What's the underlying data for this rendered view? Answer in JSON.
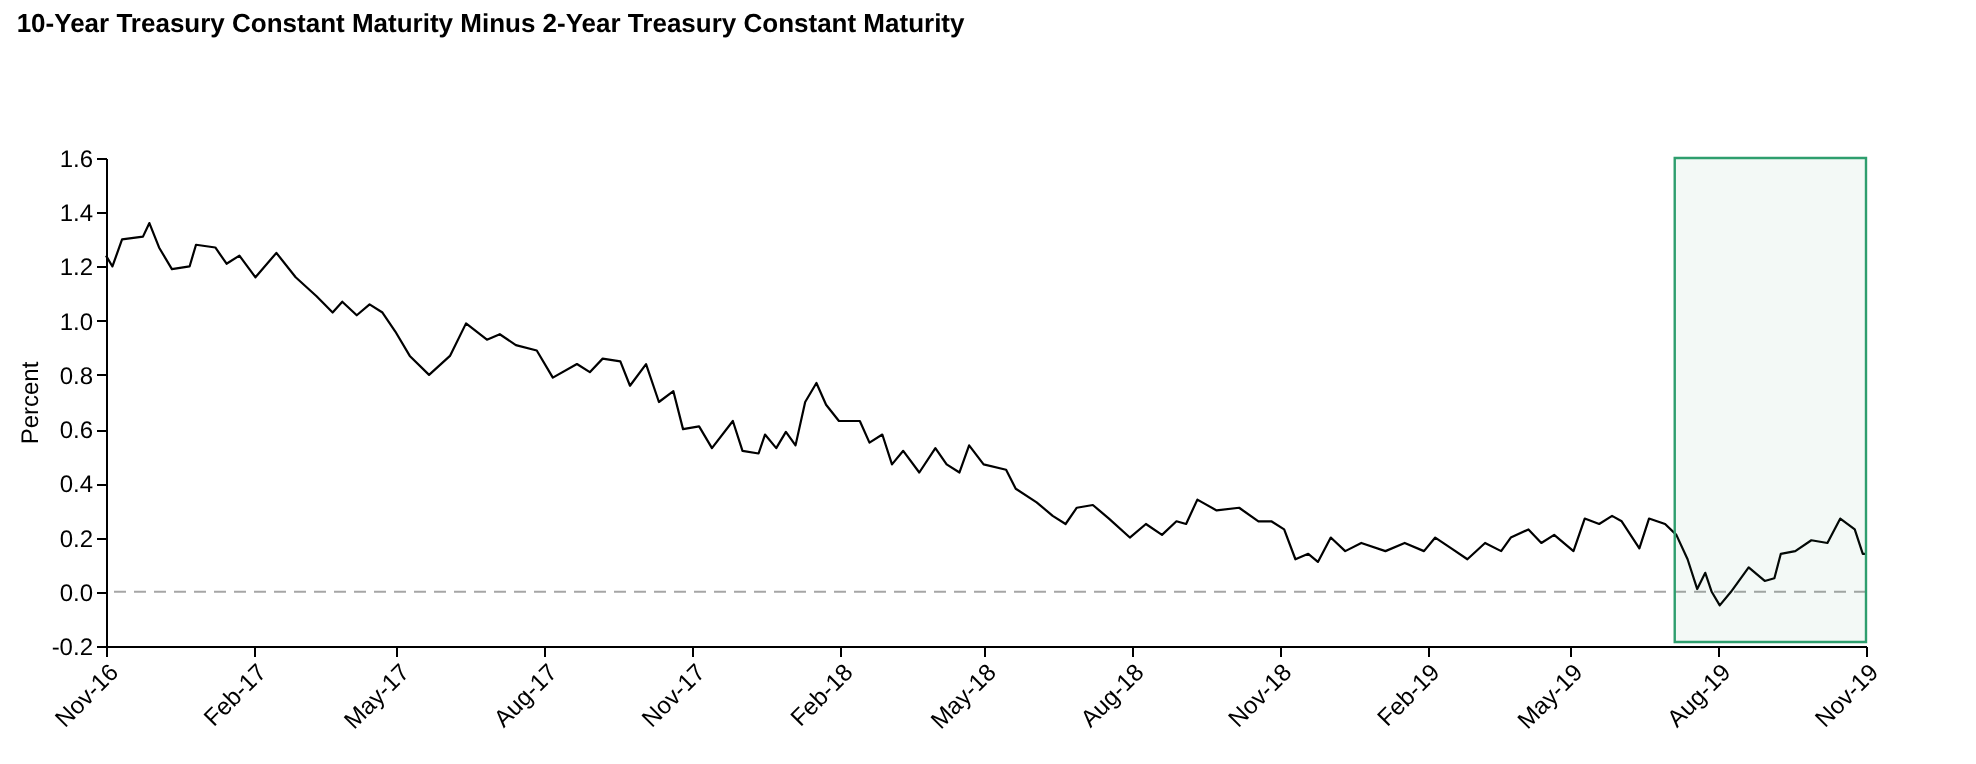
{
  "chart_data": {
    "type": "line",
    "title": "10-Year Treasury Constant Maturity Minus 2-Year Treasury Constant Maturity",
    "ylabel": "Percent",
    "xlim": [
      "2016-11-01",
      "2019-11-01"
    ],
    "xticks": [
      {
        "value": "2016-11-01",
        "label": "Nov-16"
      },
      {
        "value": "2017-02-01",
        "label": "Feb-17"
      },
      {
        "value": "2017-05-01",
        "label": "May-17"
      },
      {
        "value": "2017-08-01",
        "label": "Aug-17"
      },
      {
        "value": "2017-11-01",
        "label": "Nov-17"
      },
      {
        "value": "2018-02-01",
        "label": "Feb-18"
      },
      {
        "value": "2018-05-01",
        "label": "May-18"
      },
      {
        "value": "2018-08-01",
        "label": "Aug-18"
      },
      {
        "value": "2018-11-01",
        "label": "Nov-18"
      },
      {
        "value": "2019-02-01",
        "label": "Feb-19"
      },
      {
        "value": "2019-05-01",
        "label": "May-19"
      },
      {
        "value": "2019-08-01",
        "label": "Aug-19"
      },
      {
        "value": "2019-11-01",
        "label": "Nov-19"
      }
    ],
    "ylim": [
      -0.2,
      1.6
    ],
    "yticks": [
      {
        "value": -0.2,
        "label": "-0.2"
      },
      {
        "value": 0,
        "label": "0.0"
      },
      0.2,
      0.4,
      0.6,
      0.8,
      {
        "value": 1,
        "label": "1.0"
      },
      1.2,
      1.4,
      1.6
    ],
    "grid": false,
    "line_style": "solid",
    "marker": "none",
    "x": [
      "2016-11-01",
      "2016-11-05",
      "2016-11-11",
      "2016-11-24",
      "2016-11-28",
      "2016-12-04",
      "2016-12-12",
      "2016-12-23",
      "2016-12-27",
      "2017-01-08",
      "2017-01-15",
      "2017-01-23",
      "2017-02-02",
      "2017-02-15",
      "2017-02-27",
      "2017-03-12",
      "2017-03-22",
      "2017-03-28",
      "2017-04-06",
      "2017-04-14",
      "2017-04-22",
      "2017-04-30",
      "2017-05-09",
      "2017-05-21",
      "2017-06-03",
      "2017-06-13",
      "2017-06-26",
      "2017-07-04",
      "2017-07-14",
      "2017-07-27",
      "2017-08-06",
      "2017-08-21",
      "2017-08-29",
      "2017-09-06",
      "2017-09-17",
      "2017-09-23",
      "2017-10-03",
      "2017-10-11",
      "2017-10-20",
      "2017-10-26",
      "2017-11-05",
      "2017-11-13",
      "2017-11-26",
      "2017-12-02",
      "2017-12-12",
      "2017-12-16",
      "2017-12-23",
      "2017-12-29",
      "2018-01-04",
      "2018-01-10",
      "2018-01-17",
      "2018-01-23",
      "2018-01-31",
      "2018-02-13",
      "2018-02-19",
      "2018-02-27",
      "2018-03-05",
      "2018-03-12",
      "2018-03-22",
      "2018-04-01",
      "2018-04-08",
      "2018-04-16",
      "2018-04-22",
      "2018-05-01",
      "2018-05-15",
      "2018-05-21",
      "2018-06-03",
      "2018-06-13",
      "2018-06-21",
      "2018-06-28",
      "2018-07-08",
      "2018-07-18",
      "2018-07-31",
      "2018-08-10",
      "2018-08-20",
      "2018-08-29",
      "2018-09-04",
      "2018-09-11",
      "2018-09-23",
      "2018-10-07",
      "2018-10-19",
      "2018-10-27",
      "2018-11-04",
      "2018-11-11",
      "2018-11-19",
      "2018-11-25",
      "2018-12-03",
      "2018-12-12",
      "2018-12-22",
      "2019-01-06",
      "2019-01-18",
      "2019-01-30",
      "2019-02-06",
      "2019-02-16",
      "2019-02-26",
      "2019-03-09",
      "2019-03-19",
      "2019-03-25",
      "2019-04-05",
      "2019-04-13",
      "2019-04-21",
      "2019-05-03",
      "2019-05-10",
      "2019-05-19",
      "2019-05-27",
      "2019-06-02",
      "2019-06-13",
      "2019-06-19",
      "2019-06-29",
      "2019-07-06",
      "2019-07-13",
      "2019-07-19",
      "2019-07-24",
      "2019-07-28",
      "2019-08-02",
      "2019-08-09",
      "2019-08-20",
      "2019-08-30",
      "2019-09-05",
      "2019-09-09",
      "2019-09-18",
      "2019-09-28",
      "2019-10-08",
      "2019-10-16",
      "2019-10-25",
      "2019-10-30",
      "2019-11-01"
    ],
    "series": [
      {
        "color": "#000000",
        "values": [
          1.24,
          1.2,
          1.3,
          1.31,
          1.36,
          1.27,
          1.19,
          1.2,
          1.28,
          1.27,
          1.21,
          1.24,
          1.16,
          1.25,
          1.16,
          1.09,
          1.03,
          1.07,
          1.02,
          1.06,
          1.03,
          0.96,
          0.87,
          0.8,
          0.87,
          0.99,
          0.93,
          0.95,
          0.91,
          0.89,
          0.79,
          0.84,
          0.81,
          0.86,
          0.85,
          0.76,
          0.84,
          0.7,
          0.74,
          0.6,
          0.61,
          0.53,
          0.63,
          0.52,
          0.51,
          0.58,
          0.53,
          0.59,
          0.54,
          0.7,
          0.77,
          0.69,
          0.63,
          0.63,
          0.55,
          0.58,
          0.47,
          0.52,
          0.44,
          0.53,
          0.47,
          0.44,
          0.54,
          0.47,
          0.45,
          0.38,
          0.33,
          0.28,
          0.25,
          0.31,
          0.32,
          0.27,
          0.2,
          0.25,
          0.21,
          0.26,
          0.25,
          0.34,
          0.3,
          0.31,
          0.26,
          0.26,
          0.23,
          0.12,
          0.14,
          0.11,
          0.2,
          0.15,
          0.18,
          0.15,
          0.18,
          0.15,
          0.2,
          0.16,
          0.12,
          0.18,
          0.15,
          0.2,
          0.23,
          0.18,
          0.21,
          0.15,
          0.27,
          0.25,
          0.28,
          0.26,
          0.16,
          0.27,
          0.25,
          0.21,
          0.12,
          0.01,
          0.07,
          0.0,
          -0.05,
          0.0,
          0.09,
          0.04,
          0.05,
          0.14,
          0.15,
          0.19,
          0.18,
          0.27,
          0.23,
          0.14,
          0.14
        ]
      }
    ],
    "ref_lines": [
      {
        "axis": "y",
        "value": 0,
        "color": "#a6a6a6",
        "line_style": "dashed"
      }
    ],
    "bands": [
      {
        "axis": "x",
        "from": "2019-07-05",
        "to": "2019-11-01",
        "color": "#2e9e6e"
      }
    ]
  }
}
